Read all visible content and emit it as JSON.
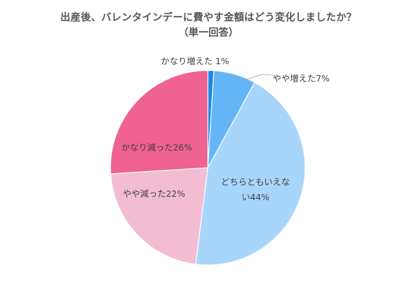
{
  "chart_data": {
    "type": "pie",
    "title": "出産後、バレンタインデーに費やす金額はどう変化しましたか？",
    "subtitle": "（単一回答）",
    "slices": [
      {
        "label": "かなり増えた",
        "value": 1,
        "display": "かなり増えた 1%",
        "color": "#1e88e5"
      },
      {
        "label": "やや増えた",
        "value": 7,
        "display": "やや増えた7%",
        "color": "#64b5f6"
      },
      {
        "label": "どちらともいえない",
        "value": 44,
        "display_lines": [
          "どちらともいえな",
          "い44%"
        ],
        "color": "#a8d5fa"
      },
      {
        "label": "やや減った",
        "value": 22,
        "display": "やや減った22%",
        "color": "#f2bcd3"
      },
      {
        "label": "かなり減った",
        "value": 26,
        "display": "かなり減った26%",
        "color": "#ef6291"
      }
    ],
    "start_angle_deg": 0,
    "direction": "clockwise"
  }
}
